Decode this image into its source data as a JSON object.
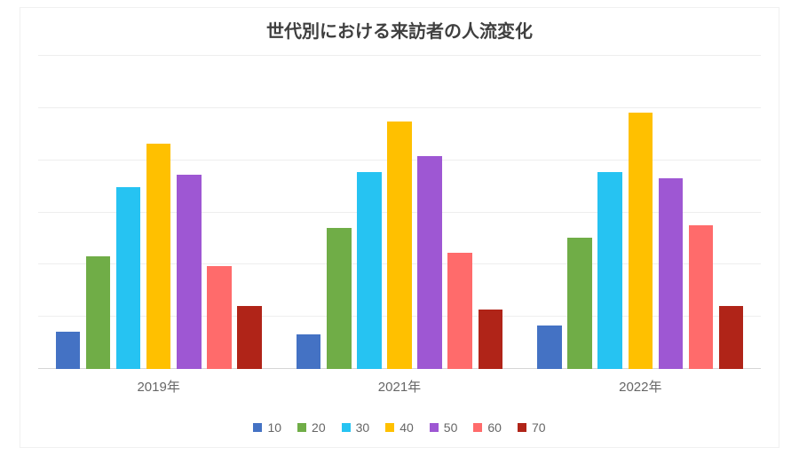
{
  "chart": {
    "type": "bar",
    "title": "世代別における来訪者の人流変化",
    "title_fontsize": 20,
    "title_color": "#3f3f3f",
    "background_color": "#ffffff",
    "grid_color": "#eeeeee",
    "axis_color": "#d5d5d5",
    "label_color": "#666666",
    "label_fontsize": 15,
    "legend_fontsize": 14,
    "ylim": [
      0,
      100
    ],
    "gridlines": [
      0,
      16.67,
      33.33,
      50,
      66.67,
      83.33,
      100
    ],
    "categories": [
      "2019年",
      "2021年",
      "2022年"
    ],
    "series": [
      {
        "name": "10",
        "color": "#4472c4",
        "values": [
          12,
          11,
          14
        ]
      },
      {
        "name": "20",
        "color": "#70ad47",
        "values": [
          36,
          45,
          42
        ]
      },
      {
        "name": "30",
        "color": "#26c3f2",
        "values": [
          58,
          63,
          63
        ]
      },
      {
        "name": "40",
        "color": "#ffc000",
        "values": [
          72,
          79,
          82
        ]
      },
      {
        "name": "50",
        "color": "#9e57d3",
        "values": [
          62,
          68,
          61
        ]
      },
      {
        "name": "60",
        "color": "#ff6b6b",
        "values": [
          33,
          37,
          46
        ]
      },
      {
        "name": "70",
        "color": "#b02418",
        "values": [
          20,
          19,
          20
        ]
      }
    ],
    "bar_width": 0.85
  }
}
